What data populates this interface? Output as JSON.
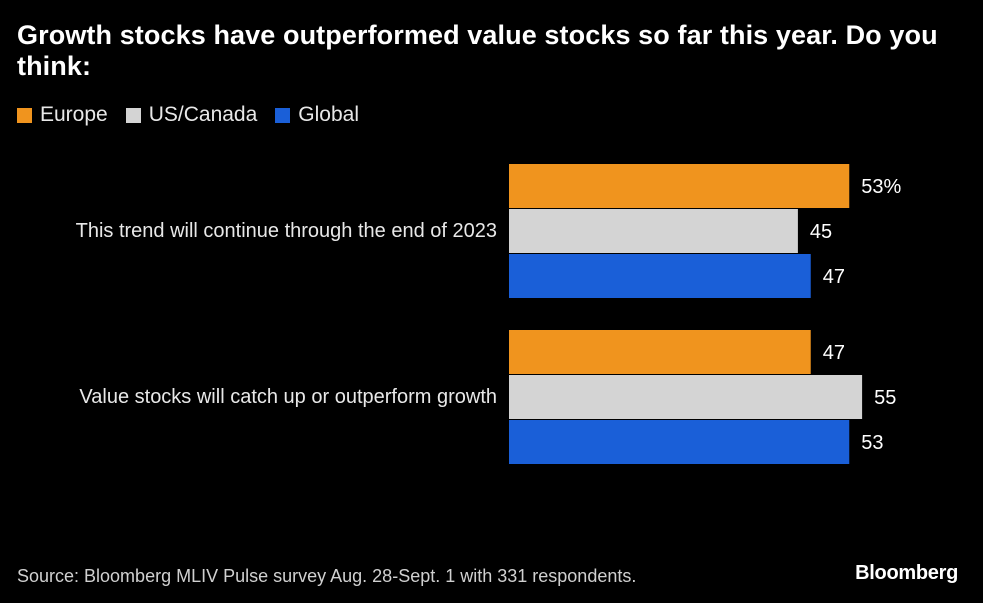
{
  "title": "Growth stocks have outperformed value stocks so far this year. Do you think:",
  "source": "Source: Bloomberg MLIV Pulse survey Aug. 28-Sept. 1 with 331 respondents.",
  "brand": "Bloomberg",
  "colors": {
    "background": "#000000",
    "Europe": "#f0941e",
    "US/Canada": "#d4d4d4",
    "Global": "#1a5fd8"
  },
  "chart_data": {
    "type": "bar",
    "orientation": "horizontal",
    "categories": [
      "This trend will continue through the end of 2023",
      "Value stocks will catch up or outperform growth"
    ],
    "series": [
      {
        "name": "Europe",
        "values": [
          53,
          47
        ]
      },
      {
        "name": "US/Canada",
        "values": [
          45,
          55
        ]
      },
      {
        "name": "Global",
        "values": [
          47,
          53
        ]
      }
    ],
    "data_labels": [
      [
        "53%",
        "45",
        "47"
      ],
      [
        "47",
        "55",
        "53"
      ]
    ],
    "unit": "%",
    "xlim": [
      0,
      55
    ],
    "legend_position": "top-left",
    "grid": false
  }
}
